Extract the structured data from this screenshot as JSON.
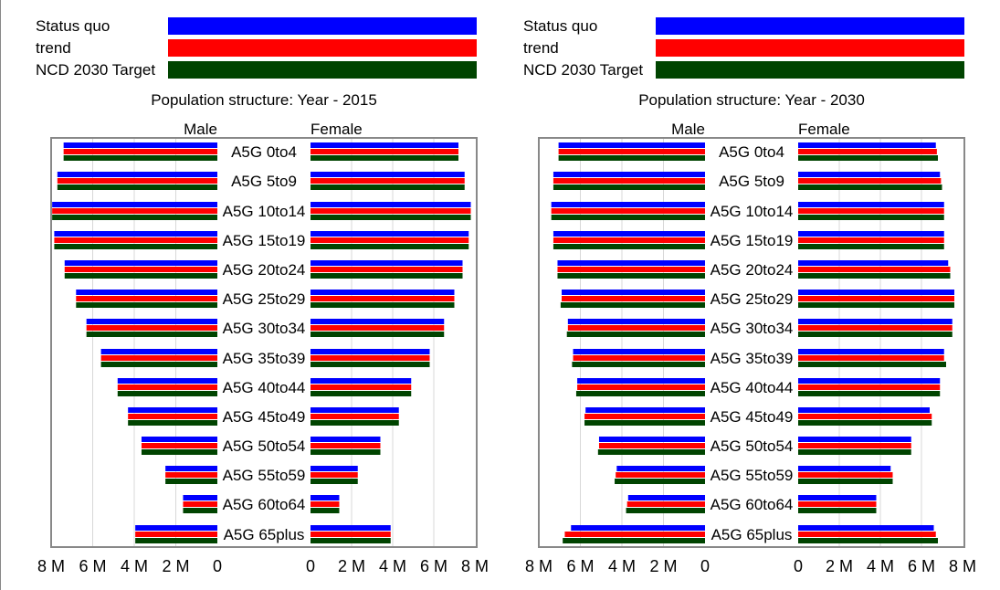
{
  "legend": {
    "items": [
      {
        "label": "Status quo",
        "color": "#0000ff"
      },
      {
        "label": "trend",
        "color": "#ff0000"
      },
      {
        "label": "NCD 2030 Target",
        "color": "#004400"
      }
    ]
  },
  "chart_data": [
    {
      "type": "bar",
      "orientation": "horizontal-pyramid",
      "title": "Population structure: Year - 2015",
      "left_label": "Male",
      "right_label": "Female",
      "categories": [
        "A5G 0to4",
        "A5G 5to9",
        "A5G 10to14",
        "A5G 15to19",
        "A5G 20to24",
        "A5G 25to29",
        "A5G 30to34",
        "A5G 35to39",
        "A5G 40to44",
        "A5G 45to49",
        "A5G 50to54",
        "A5G 55to59",
        "A5G 60to64",
        "A5G 65plus"
      ],
      "xlim": [
        0,
        8000000
      ],
      "x_ticks_left": [
        "8 M",
        "6 M",
        "4 M",
        "2 M",
        "0"
      ],
      "x_ticks_right": [
        "0",
        "2 M",
        "4 M",
        "6 M",
        "8 M"
      ],
      "grid": true,
      "series": [
        {
          "name": "Status quo",
          "color": "#0000ff",
          "male": [
            7400000,
            7700000,
            7950000,
            7850000,
            7350000,
            6800000,
            6300000,
            5600000,
            4800000,
            4300000,
            3650000,
            2500000,
            1650000,
            3950000
          ],
          "female": [
            7200000,
            7500000,
            7800000,
            7700000,
            7400000,
            7000000,
            6500000,
            5800000,
            4900000,
            4300000,
            3400000,
            2300000,
            1400000,
            3900000
          ]
        },
        {
          "name": "trend",
          "color": "#ff0000",
          "male": [
            7400000,
            7700000,
            7950000,
            7850000,
            7350000,
            6800000,
            6300000,
            5600000,
            4800000,
            4300000,
            3650000,
            2500000,
            1650000,
            3950000
          ],
          "female": [
            7200000,
            7500000,
            7800000,
            7700000,
            7400000,
            7000000,
            6500000,
            5800000,
            4900000,
            4300000,
            3400000,
            2300000,
            1400000,
            3900000
          ]
        },
        {
          "name": "NCD 2030 Target",
          "color": "#004400",
          "male": [
            7400000,
            7700000,
            7950000,
            7850000,
            7350000,
            6800000,
            6300000,
            5600000,
            4800000,
            4300000,
            3650000,
            2500000,
            1650000,
            3950000
          ],
          "female": [
            7200000,
            7500000,
            7800000,
            7700000,
            7400000,
            7000000,
            6500000,
            5800000,
            4900000,
            4300000,
            3400000,
            2300000,
            1400000,
            3900000
          ]
        }
      ]
    },
    {
      "type": "bar",
      "orientation": "horizontal-pyramid",
      "title": "Population structure: Year - 2030",
      "left_label": "Male",
      "right_label": "Female",
      "categories": [
        "A5G 0to4",
        "A5G 5to9",
        "A5G 10to14",
        "A5G 15to19",
        "A5G 20to24",
        "A5G 25to29",
        "A5G 30to34",
        "A5G 35to39",
        "A5G 40to44",
        "A5G 45to49",
        "A5G 50to54",
        "A5G 55to59",
        "A5G 60to64",
        "A5G 65plus"
      ],
      "xlim": [
        0,
        8000000
      ],
      "x_ticks_left": [
        "8 M",
        "6 M",
        "4 M",
        "2 M",
        "0"
      ],
      "x_ticks_right": [
        "0",
        "2 M",
        "4 M",
        "6 M",
        "8 M"
      ],
      "grid": true,
      "series": [
        {
          "name": "Status quo",
          "color": "#0000ff",
          "male": [
            7050000,
            7300000,
            7400000,
            7300000,
            7100000,
            6900000,
            6600000,
            6350000,
            6150000,
            5750000,
            5100000,
            4250000,
            3700000,
            6450000
          ],
          "female": [
            6700000,
            6900000,
            7100000,
            7100000,
            7300000,
            7600000,
            7500000,
            7100000,
            6900000,
            6400000,
            5500000,
            4500000,
            3800000,
            6600000
          ]
        },
        {
          "name": "trend",
          "color": "#ff0000",
          "male": [
            7050000,
            7300000,
            7400000,
            7300000,
            7100000,
            6900000,
            6600000,
            6350000,
            6150000,
            5800000,
            5100000,
            4300000,
            3750000,
            6750000
          ],
          "female": [
            6750000,
            6950000,
            7100000,
            7100000,
            7400000,
            7600000,
            7500000,
            7100000,
            6900000,
            6500000,
            5500000,
            4600000,
            3800000,
            6700000
          ]
        },
        {
          "name": "NCD 2030 Target",
          "color": "#004400",
          "male": [
            7050000,
            7300000,
            7400000,
            7300000,
            7100000,
            6950000,
            6650000,
            6400000,
            6200000,
            5800000,
            5150000,
            4350000,
            3800000,
            6850000
          ],
          "female": [
            6800000,
            7000000,
            7100000,
            7100000,
            7400000,
            7600000,
            7500000,
            7200000,
            6900000,
            6500000,
            5500000,
            4600000,
            3800000,
            6800000
          ]
        }
      ]
    }
  ]
}
